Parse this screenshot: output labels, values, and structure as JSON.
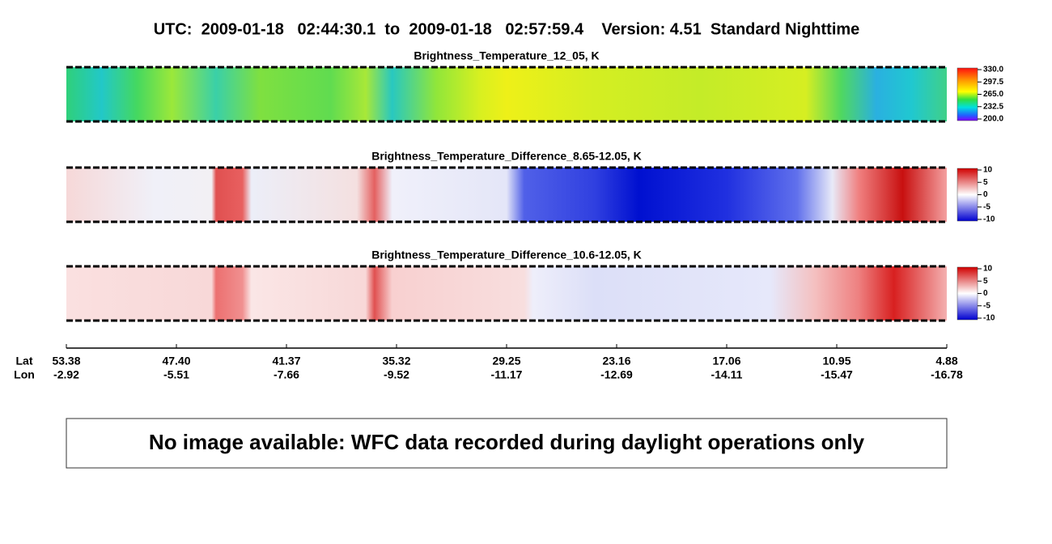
{
  "header": {
    "title": "UTC:  2009-01-18   02:44:30.1  to  2009-01-18   02:57:59.4    Version: 4.51  Standard Nighttime"
  },
  "panels": [
    {
      "title": "Brightness_Temperature_12_05, K",
      "colorbar_labels": [
        "330.0",
        "297.5",
        "265.0",
        "232.5",
        "200.0"
      ]
    },
    {
      "title": "Brightness_Temperature_Difference_8.65-12.05, K",
      "colorbar_labels": [
        "10",
        "5",
        "0",
        "-5",
        "-10"
      ]
    },
    {
      "title": "Brightness_Temperature_Difference_10.6-12.05, K",
      "colorbar_labels": [
        "10",
        "5",
        "0",
        "-5",
        "-10"
      ]
    }
  ],
  "axis": {
    "lat_label": "Lat",
    "lon_label": "Lon",
    "lat": [
      "53.38",
      "47.40",
      "41.37",
      "35.32",
      "29.25",
      "23.16",
      "17.06",
      "10.95",
      "4.88"
    ],
    "lon": [
      "-2.92",
      "-5.51",
      "-7.66",
      "-9.52",
      "-11.17",
      "-12.69",
      "-14.11",
      "-15.47",
      "-16.78"
    ]
  },
  "message": "No image available: WFC data recorded during daylight operations only"
}
